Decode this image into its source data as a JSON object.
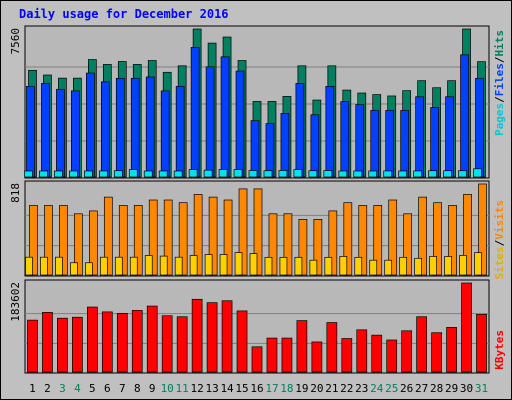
{
  "title": "Daily usage for December 2016",
  "colors": {
    "background": "#c0c0c0",
    "panel": "#b8b8b8",
    "pages": "#00e0f0",
    "files": "#0040ff",
    "hits": "#008060",
    "sites": "#ffd000",
    "visits": "#ff8800",
    "kbytes": "#ff0000",
    "title": "#0000ff",
    "weekend_day": "#008060"
  },
  "chart_data": [
    {
      "type": "bar",
      "name": "hits_files_pages",
      "categories": [
        "1",
        "2",
        "3",
        "4",
        "5",
        "6",
        "7",
        "8",
        "9",
        "10",
        "11",
        "12",
        "13",
        "14",
        "15",
        "16",
        "17",
        "18",
        "19",
        "20",
        "21",
        "22",
        "23",
        "24",
        "25",
        "26",
        "27",
        "28",
        "29",
        "30",
        "31"
      ],
      "weekend_days": [
        "3",
        "4",
        "10",
        "11",
        "17",
        "18",
        "24",
        "25",
        "31"
      ],
      "ymax_label": "7560",
      "ylim": [
        0,
        7560
      ],
      "series": [
        {
          "name": "Hits",
          "values": [
            5450,
            5210,
            5050,
            5050,
            6000,
            5750,
            5900,
            5750,
            5950,
            5350,
            5680,
            7560,
            6840,
            7150,
            5950,
            3860,
            3860,
            4120,
            5680,
            3930,
            5680,
            4440,
            4290,
            4210,
            4140,
            4410,
            4920,
            4560,
            4920,
            7560,
            5890
          ]
        },
        {
          "name": "Files",
          "values": [
            4630,
            4780,
            4480,
            4400,
            5310,
            4860,
            5040,
            5040,
            5110,
            4400,
            4630,
            6620,
            5630,
            6140,
            5410,
            2880,
            2730,
            3250,
            4780,
            3180,
            4630,
            3850,
            3700,
            3400,
            3400,
            3400,
            4100,
            3550,
            4100,
            6240,
            5040
          ]
        },
        {
          "name": "Pages",
          "values": [
            300,
            300,
            280,
            280,
            290,
            310,
            320,
            380,
            300,
            270,
            300,
            380,
            350,
            390,
            380,
            330,
            320,
            330,
            380,
            320,
            330,
            300,
            300,
            290,
            310,
            300,
            310,
            320,
            320,
            320,
            420
          ]
        }
      ]
    },
    {
      "type": "bar",
      "name": "visits_sites",
      "ymax_label": "818",
      "ylim": [
        0,
        818
      ],
      "series": [
        {
          "name": "Visits",
          "values": [
            625,
            625,
            625,
            550,
            576,
            700,
            625,
            625,
            674,
            674,
            650,
            724,
            700,
            674,
            774,
            774,
            550,
            550,
            500,
            500,
            576,
            650,
            625,
            625,
            674,
            550,
            700,
            650,
            625,
            724,
            818
          ]
        },
        {
          "name": "Sites",
          "values": [
            160,
            160,
            160,
            110,
            110,
            160,
            160,
            160,
            175,
            170,
            160,
            175,
            184,
            184,
            201,
            192,
            159,
            159,
            159,
            133,
            159,
            167,
            159,
            133,
            133,
            159,
            150,
            167,
            167,
            176,
            201
          ]
        }
      ]
    },
    {
      "type": "bar",
      "name": "kbytes",
      "ymax_label": "183602",
      "ylim": [
        0,
        183602
      ],
      "series": [
        {
          "name": "KBytes",
          "values": [
            107000,
            123000,
            111000,
            113000,
            134000,
            124000,
            121000,
            127000,
            136000,
            116000,
            114000,
            150000,
            143000,
            147000,
            126000,
            52000,
            70000,
            70000,
            106000,
            62000,
            102000,
            69000,
            87000,
            76000,
            66000,
            85000,
            114000,
            81000,
            92000,
            183602,
            119000
          ]
        }
      ]
    }
  ],
  "labels": {
    "top_right": [
      "Hits",
      "/",
      "Files",
      "/",
      "Pages"
    ],
    "mid_right": [
      "Visits",
      "/",
      "Sites"
    ],
    "bottom_right": "KBytes"
  }
}
